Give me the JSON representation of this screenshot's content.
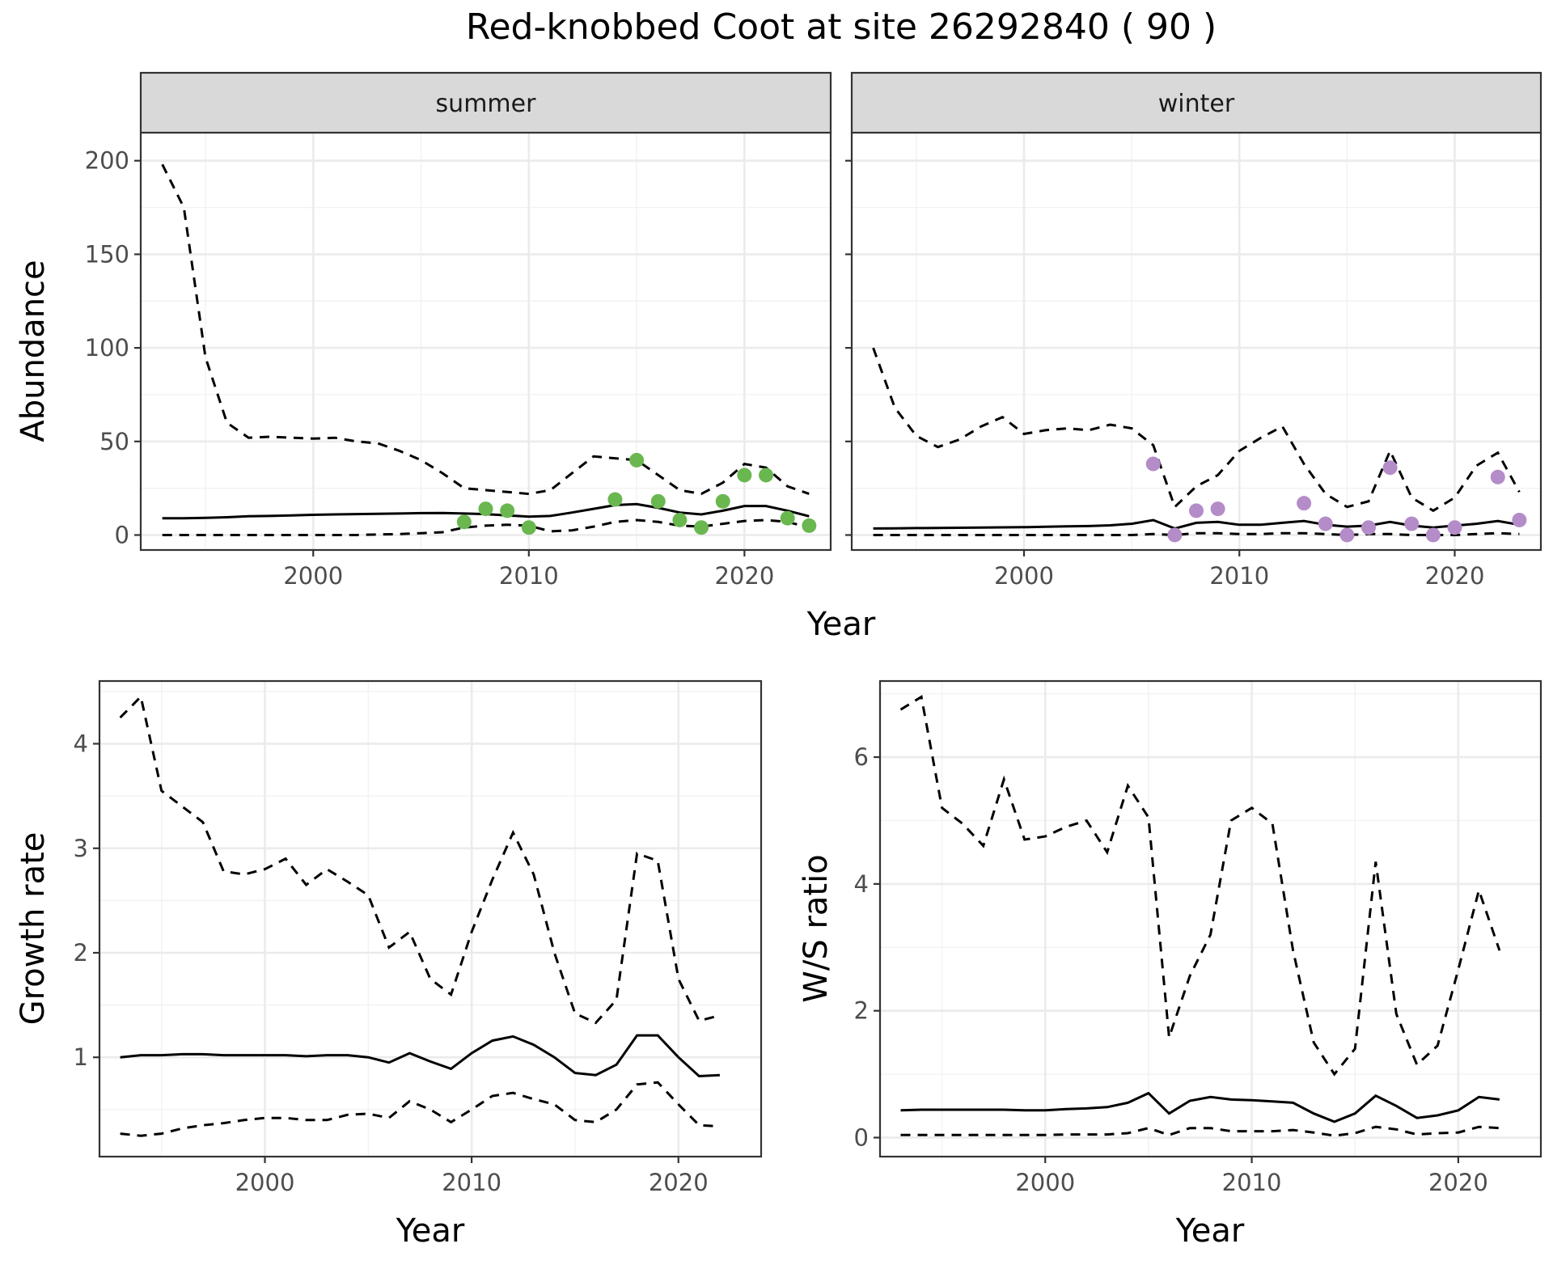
{
  "title": "Red-knobbed Coot at site 26292840 ( 90 )",
  "colors": {
    "summer_points": "#6ab750",
    "winter_points": "#b48cc8",
    "lines": "#000000",
    "strip": "#d9d9d9"
  },
  "top_xlabel": "Year",
  "chart_data": [
    {
      "type": "line",
      "facet": "summer",
      "ylabel": "Abundance",
      "xlabel": "Year",
      "xlim": [
        1992,
        2024
      ],
      "ylim": [
        -8,
        215
      ],
      "xticks": [
        2000,
        2010,
        2020
      ],
      "yticks": [
        0,
        50,
        100,
        150,
        200
      ],
      "x": [
        1993,
        1994,
        1995,
        1996,
        1997,
        1998,
        1999,
        2000,
        2001,
        2002,
        2003,
        2004,
        2005,
        2006,
        2007,
        2008,
        2009,
        2010,
        2011,
        2012,
        2013,
        2014,
        2015,
        2016,
        2017,
        2018,
        2019,
        2020,
        2021,
        2022,
        2023
      ],
      "mean": [
        9,
        9,
        9.2,
        9.5,
        10,
        10.2,
        10.5,
        10.8,
        11,
        11.2,
        11.3,
        11.5,
        11.7,
        11.8,
        11.5,
        11.2,
        10.5,
        9.8,
        10.2,
        12,
        14,
        16,
        16.5,
        14.5,
        12,
        11,
        13,
        15.5,
        15.5,
        13,
        10
      ],
      "upper": [
        198,
        175,
        95,
        60,
        52,
        52.5,
        52,
        51.5,
        52,
        50,
        49,
        45,
        40,
        33,
        25,
        24,
        23,
        22,
        24,
        33,
        42,
        41,
        40,
        32,
        24,
        22,
        28,
        38,
        36,
        26,
        22
      ],
      "lower": [
        0,
        0,
        0,
        0,
        0,
        0,
        0,
        0,
        0,
        0,
        0.3,
        0.5,
        1,
        1.5,
        4,
        5,
        5.5,
        5,
        2,
        2.5,
        4.5,
        7,
        8,
        7,
        5,
        4.5,
        6,
        7.5,
        8,
        7,
        4
      ],
      "points": [
        {
          "x": 2007,
          "y": 7
        },
        {
          "x": 2008,
          "y": 14
        },
        {
          "x": 2009,
          "y": 13
        },
        {
          "x": 2010,
          "y": 4
        },
        {
          "x": 2014,
          "y": 19
        },
        {
          "x": 2015,
          "y": 40
        },
        {
          "x": 2016,
          "y": 18
        },
        {
          "x": 2017,
          "y": 8
        },
        {
          "x": 2018,
          "y": 4
        },
        {
          "x": 2019,
          "y": 18
        },
        {
          "x": 2020,
          "y": 32
        },
        {
          "x": 2021,
          "y": 32
        },
        {
          "x": 2022,
          "y": 9
        },
        {
          "x": 2023,
          "y": 5
        }
      ]
    },
    {
      "type": "line",
      "facet": "winter",
      "xlabel": "Year",
      "xlim": [
        1992,
        2024
      ],
      "ylim": [
        -8,
        215
      ],
      "xticks": [
        2000,
        2010,
        2020
      ],
      "yticks": [
        0,
        50,
        100,
        150,
        200
      ],
      "x": [
        1993,
        1994,
        1995,
        1996,
        1997,
        1998,
        1999,
        2000,
        2001,
        2002,
        2003,
        2004,
        2005,
        2006,
        2007,
        2008,
        2009,
        2010,
        2011,
        2012,
        2013,
        2014,
        2015,
        2016,
        2017,
        2018,
        2019,
        2020,
        2021,
        2022,
        2023
      ],
      "mean": [
        3.5,
        3.6,
        3.7,
        3.8,
        3.9,
        4,
        4.1,
        4.2,
        4.4,
        4.6,
        4.8,
        5.2,
        6,
        8,
        3.5,
        6.5,
        7,
        5.5,
        5.5,
        6.5,
        7.5,
        5.5,
        4.5,
        5,
        7,
        5,
        4,
        5,
        6,
        7.5,
        5.5
      ],
      "upper": [
        100,
        68,
        53,
        47,
        51,
        58,
        63,
        54,
        56,
        57,
        56,
        59,
        57,
        48,
        15,
        26,
        32,
        45,
        52,
        58,
        38,
        22,
        15,
        18,
        45,
        20,
        13,
        20,
        37,
        44,
        23
      ],
      "lower": [
        0,
        0,
        0,
        0,
        0,
        0,
        0,
        0,
        0,
        0,
        0,
        0,
        0,
        0.5,
        0,
        1,
        1,
        0.5,
        0.5,
        1,
        1,
        0.5,
        0,
        0.5,
        0.5,
        0,
        0,
        0,
        0.5,
        1,
        0.5
      ],
      "points": [
        {
          "x": 2006,
          "y": 38
        },
        {
          "x": 2007,
          "y": 0
        },
        {
          "x": 2008,
          "y": 13
        },
        {
          "x": 2009,
          "y": 14
        },
        {
          "x": 2013,
          "y": 17
        },
        {
          "x": 2014,
          "y": 6
        },
        {
          "x": 2015,
          "y": 0
        },
        {
          "x": 2016,
          "y": 4
        },
        {
          "x": 2017,
          "y": 36
        },
        {
          "x": 2018,
          "y": 6
        },
        {
          "x": 2019,
          "y": 0
        },
        {
          "x": 2020,
          "y": 4
        },
        {
          "x": 2022,
          "y": 31
        },
        {
          "x": 2023,
          "y": 8
        }
      ]
    },
    {
      "type": "line",
      "facet": "growth",
      "ylabel": "Growth rate",
      "xlabel": "Year",
      "xlim": [
        1992,
        2024
      ],
      "ylim": [
        0.05,
        4.6
      ],
      "xticks": [
        2000,
        2010,
        2020
      ],
      "yticks": [
        1,
        2,
        3,
        4
      ],
      "x": [
        1993,
        1994,
        1995,
        1996,
        1997,
        1998,
        1999,
        2000,
        2001,
        2002,
        2003,
        2004,
        2005,
        2006,
        2007,
        2008,
        2009,
        2010,
        2011,
        2012,
        2013,
        2014,
        2015,
        2016,
        2017,
        2018,
        2019,
        2020,
        2021,
        2022
      ],
      "mean": [
        1,
        1.02,
        1.02,
        1.03,
        1.03,
        1.02,
        1.02,
        1.02,
        1.02,
        1.01,
        1.02,
        1.02,
        1,
        0.95,
        1.04,
        0.96,
        0.89,
        1.04,
        1.16,
        1.2,
        1.12,
        1,
        0.85,
        0.83,
        0.93,
        1.21,
        1.21,
        1,
        0.82,
        0.83
      ],
      "upper": [
        4.25,
        4.45,
        3.55,
        3.4,
        3.25,
        2.78,
        2.75,
        2.8,
        2.9,
        2.65,
        2.8,
        2.68,
        2.55,
        2.05,
        2.2,
        1.75,
        1.6,
        2.2,
        2.7,
        3.15,
        2.75,
        2,
        1.42,
        1.33,
        1.55,
        2.95,
        2.88,
        1.75,
        1.35,
        1.4
      ],
      "lower": [
        0.27,
        0.25,
        0.27,
        0.32,
        0.35,
        0.37,
        0.4,
        0.42,
        0.42,
        0.4,
        0.4,
        0.45,
        0.46,
        0.42,
        0.58,
        0.5,
        0.38,
        0.5,
        0.63,
        0.66,
        0.6,
        0.55,
        0.4,
        0.38,
        0.5,
        0.74,
        0.76,
        0.55,
        0.35,
        0.34
      ]
    },
    {
      "type": "line",
      "facet": "ws_ratio",
      "ylabel": "W/S ratio",
      "xlabel": "Year",
      "xlim": [
        1992,
        2024
      ],
      "ylim": [
        -0.3,
        7.2
      ],
      "xticks": [
        2000,
        2010,
        2020
      ],
      "yticks": [
        0,
        2,
        4,
        6
      ],
      "x": [
        1993,
        1994,
        1995,
        1996,
        1997,
        1998,
        1999,
        2000,
        2001,
        2002,
        2003,
        2004,
        2005,
        2006,
        2007,
        2008,
        2009,
        2010,
        2011,
        2012,
        2013,
        2014,
        2015,
        2016,
        2017,
        2018,
        2019,
        2020,
        2021,
        2022
      ],
      "mean": [
        0.43,
        0.44,
        0.44,
        0.44,
        0.44,
        0.44,
        0.43,
        0.43,
        0.45,
        0.46,
        0.48,
        0.55,
        0.7,
        0.38,
        0.58,
        0.64,
        0.6,
        0.59,
        0.57,
        0.55,
        0.38,
        0.25,
        0.38,
        0.66,
        0.5,
        0.31,
        0.35,
        0.43,
        0.64,
        0.6
      ],
      "upper": [
        6.75,
        6.95,
        5.2,
        4.95,
        4.6,
        5.65,
        4.7,
        4.75,
        4.9,
        5,
        4.5,
        5.55,
        5.05,
        1.58,
        2.55,
        3.2,
        5,
        5.2,
        4.95,
        2.95,
        1.5,
        1,
        1.4,
        4.35,
        1.95,
        1.15,
        1.45,
        2.65,
        3.9,
        2.95
      ],
      "lower": [
        0.04,
        0.04,
        0.04,
        0.04,
        0.04,
        0.04,
        0.04,
        0.04,
        0.05,
        0.05,
        0.05,
        0.07,
        0.15,
        0.04,
        0.15,
        0.15,
        0.1,
        0.1,
        0.1,
        0.12,
        0.08,
        0.03,
        0.07,
        0.17,
        0.13,
        0.05,
        0.07,
        0.08,
        0.17,
        0.15
      ]
    }
  ]
}
